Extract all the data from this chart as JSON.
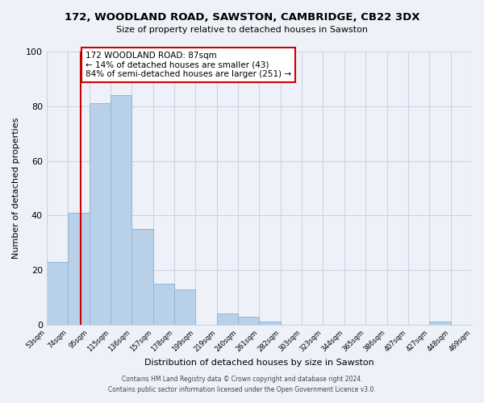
{
  "title": "172, WOODLAND ROAD, SAWSTON, CAMBRIDGE, CB22 3DX",
  "subtitle": "Size of property relative to detached houses in Sawston",
  "xlabel": "Distribution of detached houses by size in Sawston",
  "ylabel": "Number of detached properties",
  "bar_color": "#b8d0e8",
  "bar_edge_color": "#90b8d8",
  "bin_labels": [
    "53sqm",
    "74sqm",
    "95sqm",
    "115sqm",
    "136sqm",
    "157sqm",
    "178sqm",
    "199sqm",
    "219sqm",
    "240sqm",
    "261sqm",
    "282sqm",
    "303sqm",
    "323sqm",
    "344sqm",
    "365sqm",
    "386sqm",
    "407sqm",
    "427sqm",
    "448sqm",
    "469sqm"
  ],
  "counts": [
    23,
    41,
    81,
    84,
    35,
    15,
    13,
    0,
    4,
    3,
    1,
    0,
    0,
    0,
    0,
    0,
    0,
    0,
    1,
    0
  ],
  "ylim": [
    0,
    100
  ],
  "red_line_color": "#cc0000",
  "annotation_title": "172 WOODLAND ROAD: 87sqm",
  "annotation_line1": "← 14% of detached houses are smaller (43)",
  "annotation_line2": "84% of semi-detached houses are larger (251) →",
  "annotation_box_color": "#ffffff",
  "annotation_box_edge": "#cc0000",
  "footer_line1": "Contains HM Land Registry data © Crown copyright and database right 2024.",
  "footer_line2": "Contains public sector information licensed under the Open Government Licence v3.0.",
  "background_color": "#eef2f8",
  "plot_background": "#eef2f8",
  "grid_color": "#c8d4e8"
}
